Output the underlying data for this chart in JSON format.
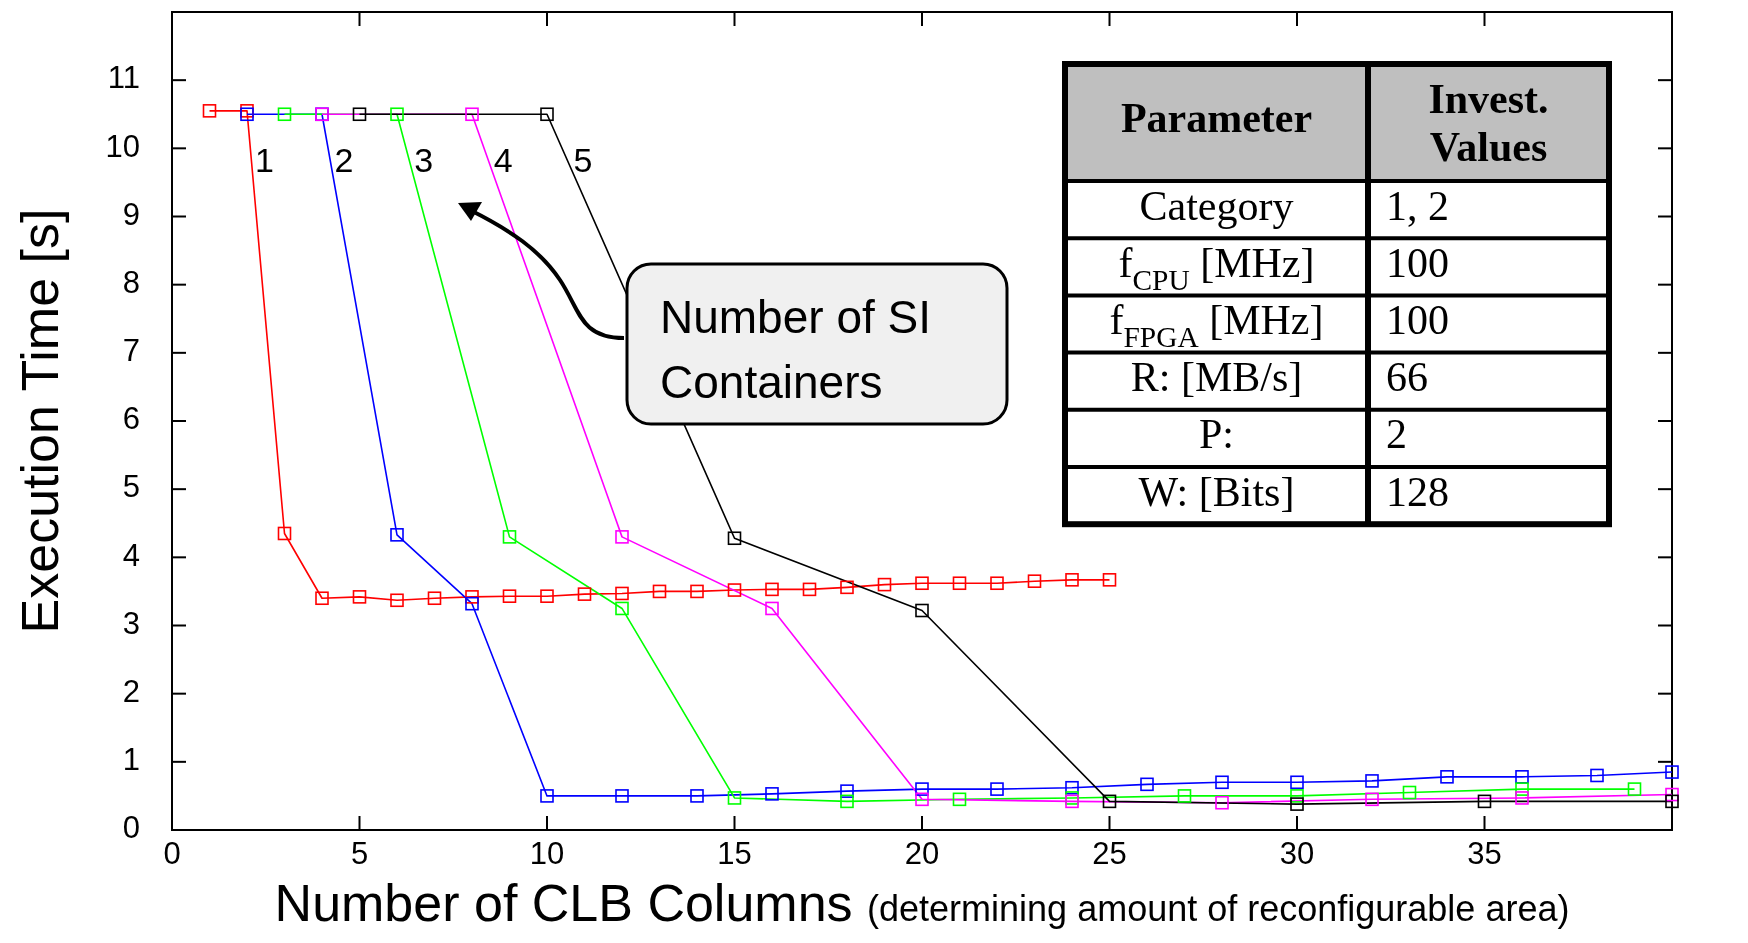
{
  "chart_data": {
    "type": "line",
    "xlabel": "Number of CLB Columns (determining amount of reconfigurable area)",
    "ylabel": "Execution Time [s]",
    "xlim": [
      0,
      40
    ],
    "xticks": [
      0,
      5,
      10,
      15,
      20,
      25,
      30,
      35,
      {
        "value": 40,
        "label": null
      }
    ],
    "ylim": [
      0,
      12
    ],
    "yticks": [
      0,
      1,
      2,
      3,
      4,
      5,
      6,
      7,
      8,
      9,
      10,
      11
    ],
    "grid": false,
    "marker": "square",
    "line_style": "solid",
    "series": [
      {
        "name": "1",
        "color": "#ff0000",
        "x": [
          1,
          2,
          3,
          4,
          5,
          6,
          7,
          8,
          9,
          10,
          11,
          12,
          13,
          14,
          15,
          16,
          17,
          18,
          19,
          20,
          21,
          22,
          23,
          24,
          25
        ],
        "values": [
          10.55,
          10.55,
          4.35,
          3.4,
          3.42,
          3.37,
          3.4,
          3.42,
          3.43,
          3.43,
          3.46,
          3.47,
          3.5,
          3.5,
          3.52,
          3.53,
          3.53,
          3.56,
          3.6,
          3.62,
          3.62,
          3.62,
          3.65,
          3.67,
          3.67
        ]
      },
      {
        "name": "2",
        "color": "#0000ff",
        "x": [
          2,
          4,
          6,
          8,
          10,
          12,
          14,
          16,
          18,
          20,
          22,
          24,
          26,
          28,
          30,
          32,
          34,
          36,
          38,
          40
        ],
        "values": [
          10.5,
          10.5,
          4.33,
          3.32,
          0.5,
          0.5,
          0.5,
          0.53,
          0.57,
          0.6,
          0.6,
          0.62,
          0.67,
          0.7,
          0.7,
          0.72,
          0.78,
          0.78,
          0.8,
          0.85
        ]
      },
      {
        "name": "3",
        "color": "#00ff00",
        "x": [
          3,
          6,
          9,
          12,
          15,
          18,
          21,
          24,
          27,
          30,
          33,
          36,
          39
        ],
        "values": [
          10.5,
          10.5,
          4.3,
          3.25,
          0.47,
          0.42,
          0.45,
          0.47,
          0.5,
          0.5,
          0.55,
          0.6,
          0.6
        ]
      },
      {
        "name": "4",
        "color": "#ff00ff",
        "x": [
          4,
          8,
          12,
          16,
          20,
          24,
          28,
          32,
          36,
          40
        ],
        "values": [
          10.5,
          10.5,
          4.3,
          3.25,
          0.45,
          0.42,
          0.4,
          0.45,
          0.47,
          0.52
        ]
      },
      {
        "name": "5",
        "color": "#000000",
        "x": [
          5,
          10,
          15,
          20,
          25,
          30,
          35,
          40
        ],
        "values": [
          10.5,
          10.5,
          4.28,
          3.22,
          0.42,
          0.38,
          0.42,
          0.42
        ]
      }
    ],
    "annotations": [
      "Number of SI Containers",
      "Parameter",
      "Invest. Values",
      "Category",
      "1, 2",
      "f$_{CPU}$ [MHz]",
      "100",
      "f$_{FPGA}$ [MHz]",
      "100",
      "R: [MB/s]",
      "66",
      "P:",
      "2",
      "W: [Bits]",
      "128"
    ]
  }
}
